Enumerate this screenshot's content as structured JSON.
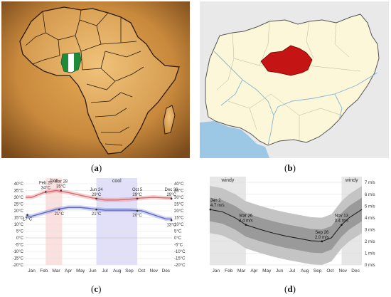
{
  "captions": {
    "a": "a",
    "b": "b",
    "c": "c",
    "d": "d"
  },
  "colors": {
    "parchment": "#c8893c",
    "nigeria_green": "#1f8a3a",
    "region_red": "#c41414",
    "map_land": "#fbf7d8",
    "map_water": "#9cc8e6",
    "neighbors": "#e9e9e9",
    "temp_high": "#d9676d",
    "temp_low": "#5a68c9",
    "hot_band": "#f7c7c7",
    "cool_band": "#c9c6f3"
  },
  "icons": {
    "africa_map": "africa-map-icon",
    "nigeria_flag": "nigeria-flag-icon",
    "nigeria_map": "nigeria-map-icon"
  },
  "chart_data": [
    {
      "type": "line",
      "months": [
        "Jan",
        "Feb",
        "Mar",
        "Apr",
        "May",
        "Jun",
        "Jul",
        "Aug",
        "Sep",
        "Oct",
        "Nov",
        "Dec"
      ],
      "ylim": [
        -20,
        40
      ],
      "yticks": [
        -20,
        -15,
        -10,
        -5,
        0,
        5,
        10,
        15,
        20,
        25,
        30,
        35,
        40
      ],
      "ytick_unit": "°C",
      "bands": [
        {
          "label": "hot",
          "start": 1.65,
          "end": 3.0
        },
        {
          "label": "cool",
          "start": 5.8,
          "end": 9.15
        }
      ],
      "series": [
        {
          "values": [
            30,
            33.5,
            35,
            33.5,
            31.5,
            29.5,
            28,
            28,
            28.5,
            29.5,
            30,
            29.5
          ]
        },
        {
          "values": [
            16,
            18.5,
            21,
            22.5,
            22.5,
            21.5,
            20.5,
            20.5,
            20.5,
            20,
            17,
            14
          ]
        }
      ],
      "annotations": [
        {
          "date": "Feb 20",
          "value": "34°C",
          "x": 1.65,
          "y": 34
        },
        {
          "date": "Mar 28",
          "value": "35°C",
          "x": 2.9,
          "y": 35
        },
        {
          "date": "Jun 24",
          "value": "29°C",
          "x": 5.8,
          "y": 29
        },
        {
          "date": "Oct 5",
          "value": "29°C",
          "x": 9.15,
          "y": 29
        },
        {
          "date": "Dec 30",
          "value": "29°C",
          "x": 11.95,
          "y": 29
        }
      ],
      "low_labels": [
        {
          "value": "17°C",
          "x": 0.15,
          "y": 17
        },
        {
          "value": "21°C",
          "x": 2.75,
          "y": 21
        },
        {
          "value": "21°C",
          "x": 5.8,
          "y": 21
        },
        {
          "value": "20°C",
          "x": 9.15,
          "y": 20
        },
        {
          "value": "13°C",
          "x": 11.95,
          "y": 13
        }
      ]
    },
    {
      "type": "area",
      "months": [
        "Jan",
        "Feb",
        "Mar",
        "Apr",
        "May",
        "Jun",
        "Jul",
        "Aug",
        "Sep",
        "Oct",
        "Nov",
        "Dec"
      ],
      "ylim": [
        0,
        7
      ],
      "yticks": [
        0,
        1,
        2,
        3,
        4,
        5,
        6,
        7
      ],
      "ytick_unit": "m/s",
      "bands": [
        {
          "label": "windy",
          "start": 0,
          "end": 2.85
        },
        {
          "label": "windy",
          "start": 10.4,
          "end": 12
        }
      ],
      "series": [
        {
          "x": [
            0,
            1,
            2,
            2.85,
            4,
            5,
            6,
            7,
            8,
            8.85,
            9.6,
            10.4,
            11,
            12
          ],
          "values": [
            4.7,
            4.5,
            4.0,
            3.4,
            3.0,
            2.7,
            2.45,
            2.25,
            2.05,
            2.0,
            2.3,
            3.4,
            4.0,
            4.7
          ]
        }
      ],
      "annotations": [
        {
          "date": "Jan 2",
          "value": "4.7 m/s",
          "x": 0.05,
          "y": 4.7
        },
        {
          "date": "Mar 26",
          "value": "3.4 m/s",
          "x": 2.85,
          "y": 3.4
        },
        {
          "date": "Sep 26",
          "value": "2.0 m/s",
          "x": 8.85,
          "y": 2.0
        },
        {
          "date": "Nov 13",
          "value": "3.4 m/s",
          "x": 10.4,
          "y": 3.4
        }
      ]
    }
  ]
}
